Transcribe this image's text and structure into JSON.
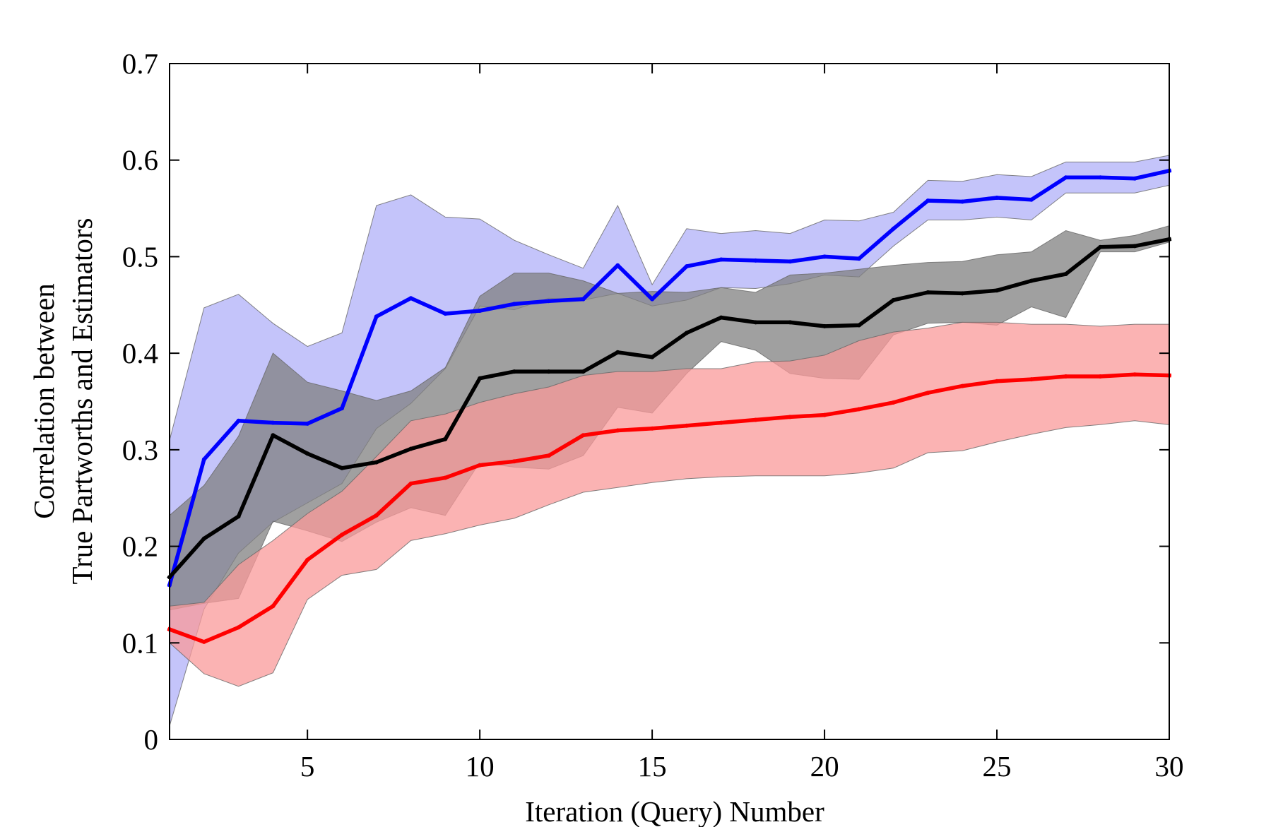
{
  "chart_data": {
    "type": "line",
    "title": "",
    "xlabel": "Iteration (Query) Number",
    "ylabel_lines": [
      "Correlation between",
      "True Partworths and Estimators"
    ],
    "xlim": [
      1,
      30
    ],
    "ylim": [
      0,
      0.7
    ],
    "xticks": [
      5,
      10,
      15,
      20,
      25,
      30
    ],
    "yticks": [
      0,
      0.1,
      0.2,
      0.3,
      0.4,
      0.5,
      0.6,
      0.7
    ],
    "grid": false,
    "legend": "none",
    "x": [
      1,
      2,
      3,
      4,
      5,
      6,
      7,
      8,
      9,
      10,
      11,
      12,
      13,
      14,
      15,
      16,
      17,
      18,
      19,
      20,
      21,
      22,
      23,
      24,
      25,
      26,
      27,
      28,
      29,
      30
    ],
    "series": [
      {
        "color": "#0000ff",
        "band_color": "#b0b0f8",
        "values": [
          0.16,
          0.29,
          0.33,
          0.328,
          0.327,
          0.343,
          0.438,
          0.457,
          0.441,
          0.444,
          0.451,
          0.454,
          0.456,
          0.491,
          0.456,
          0.49,
          0.497,
          0.496,
          0.495,
          0.5,
          0.498,
          0.529,
          0.558,
          0.557,
          0.561,
          0.559,
          0.582,
          0.582,
          0.581,
          0.589
        ],
        "upper": [
          0.31,
          0.447,
          0.461,
          0.431,
          0.407,
          0.421,
          0.553,
          0.564,
          0.541,
          0.539,
          0.517,
          0.502,
          0.488,
          0.553,
          0.471,
          0.529,
          0.524,
          0.527,
          0.524,
          0.538,
          0.537,
          0.546,
          0.579,
          0.578,
          0.585,
          0.583,
          0.598,
          0.598,
          0.598,
          0.605
        ],
        "lower": [
          0.014,
          0.135,
          0.193,
          0.225,
          0.245,
          0.265,
          0.322,
          0.348,
          0.384,
          0.449,
          0.445,
          0.457,
          0.455,
          0.462,
          0.449,
          0.455,
          0.468,
          0.467,
          0.472,
          0.481,
          0.479,
          0.511,
          0.538,
          0.538,
          0.541,
          0.538,
          0.566,
          0.566,
          0.566,
          0.574
        ]
      },
      {
        "color": "#000000",
        "band_color": "#808080",
        "values": [
          0.168,
          0.208,
          0.231,
          0.315,
          0.296,
          0.281,
          0.287,
          0.301,
          0.311,
          0.374,
          0.381,
          0.381,
          0.381,
          0.401,
          0.396,
          0.421,
          0.437,
          0.432,
          0.432,
          0.428,
          0.429,
          0.455,
          0.463,
          0.462,
          0.465,
          0.475,
          0.482,
          0.51,
          0.511,
          0.518
        ],
        "upper": [
          0.232,
          0.263,
          0.314,
          0.4,
          0.37,
          0.361,
          0.351,
          0.361,
          0.385,
          0.459,
          0.483,
          0.483,
          0.475,
          0.462,
          0.464,
          0.463,
          0.468,
          0.463,
          0.481,
          0.483,
          0.487,
          0.491,
          0.494,
          0.495,
          0.502,
          0.505,
          0.527,
          0.517,
          0.522,
          0.532
        ],
        "lower": [
          0.134,
          0.141,
          0.146,
          0.226,
          0.216,
          0.205,
          0.225,
          0.24,
          0.232,
          0.287,
          0.282,
          0.28,
          0.294,
          0.344,
          0.338,
          0.379,
          0.412,
          0.403,
          0.379,
          0.374,
          0.373,
          0.419,
          0.431,
          0.432,
          0.429,
          0.448,
          0.437,
          0.505,
          0.505,
          0.515
        ]
      },
      {
        "color": "#ff0000",
        "band_color": "#fa9a9a",
        "values": [
          0.114,
          0.101,
          0.116,
          0.138,
          0.186,
          0.212,
          0.232,
          0.265,
          0.271,
          0.284,
          0.288,
          0.294,
          0.315,
          0.32,
          0.322,
          0.325,
          0.328,
          0.331,
          0.334,
          0.336,
          0.342,
          0.349,
          0.359,
          0.366,
          0.371,
          0.373,
          0.376,
          0.376,
          0.378,
          0.377
        ],
        "upper": [
          0.138,
          0.142,
          0.181,
          0.206,
          0.234,
          0.257,
          0.293,
          0.33,
          0.337,
          0.349,
          0.358,
          0.365,
          0.377,
          0.381,
          0.381,
          0.384,
          0.384,
          0.391,
          0.392,
          0.398,
          0.413,
          0.422,
          0.426,
          0.432,
          0.432,
          0.43,
          0.43,
          0.428,
          0.43,
          0.43
        ],
        "lower": [
          0.1,
          0.068,
          0.055,
          0.069,
          0.145,
          0.17,
          0.176,
          0.206,
          0.213,
          0.222,
          0.229,
          0.243,
          0.256,
          0.261,
          0.266,
          0.27,
          0.272,
          0.273,
          0.273,
          0.273,
          0.276,
          0.281,
          0.297,
          0.299,
          0.308,
          0.316,
          0.323,
          0.326,
          0.33,
          0.326
        ]
      }
    ]
  }
}
